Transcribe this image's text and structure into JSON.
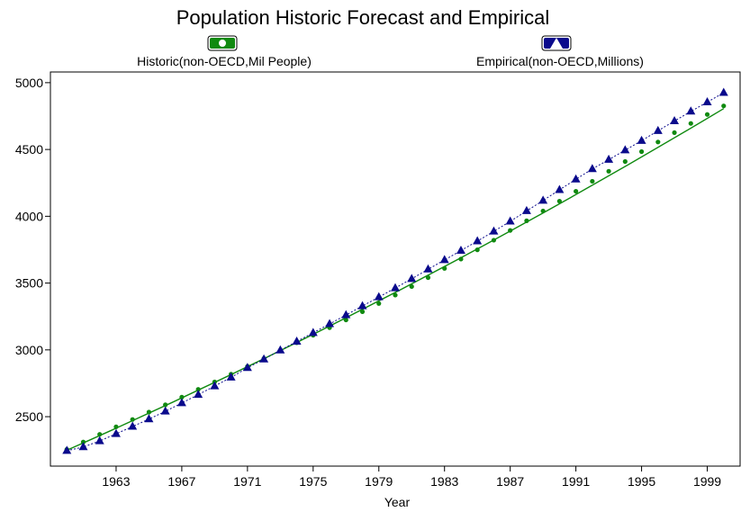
{
  "chart_data": {
    "type": "line",
    "title": "Population Historic Forecast and Empirical",
    "xlabel": "Year",
    "ylabel": "",
    "xlim": [
      1959,
      2001
    ],
    "ylim": [
      2130,
      5080
    ],
    "x_ticks": [
      1963,
      1967,
      1971,
      1975,
      1979,
      1983,
      1987,
      1991,
      1995,
      1999
    ],
    "y_ticks": [
      2500,
      3000,
      3500,
      4000,
      4500,
      5000
    ],
    "grid": false,
    "legend_position": "top",
    "x": [
      1960,
      1961,
      1962,
      1963,
      1964,
      1965,
      1966,
      1967,
      1968,
      1969,
      1970,
      1971,
      1972,
      1973,
      1974,
      1975,
      1976,
      1977,
      1978,
      1979,
      1980,
      1981,
      1982,
      1983,
      1984,
      1985,
      1986,
      1987,
      1988,
      1989,
      1990,
      1991,
      1992,
      1993,
      1994,
      1995,
      1996,
      1997,
      1998,
      1999,
      2000
    ],
    "series": [
      {
        "name": "Historic(non-OECD,Mil People)",
        "color": "#108a10",
        "marker": "circle",
        "values": [
          2255,
          2310,
          2368,
          2424,
          2479,
          2534,
          2589,
          2646,
          2704,
          2760,
          2818,
          2876,
          2935,
          2994,
          3053,
          3110,
          3166,
          3224,
          3286,
          3347,
          3410,
          3474,
          3541,
          3610,
          3680,
          3749,
          3821,
          3894,
          3966,
          4040,
          4113,
          4187,
          4262,
          4337,
          4410,
          4484,
          4556,
          4626,
          4695,
          4762,
          4826
        ]
      },
      {
        "name": "Empirical(non-OECD,Millions)",
        "color": "#0a0a8c",
        "marker": "triangle",
        "values": [
          2245,
          2273,
          2318,
          2372,
          2426,
          2482,
          2540,
          2602,
          2665,
          2729,
          2794,
          2866,
          2930,
          2997,
          3063,
          3128,
          3194,
          3261,
          3328,
          3395,
          3463,
          3532,
          3603,
          3673,
          3743,
          3814,
          3887,
          3962,
          4040,
          4118,
          4198,
          4277,
          4354,
          4424,
          4495,
          4566,
          4640,
          4713,
          4785,
          4854,
          4925
        ]
      }
    ]
  }
}
